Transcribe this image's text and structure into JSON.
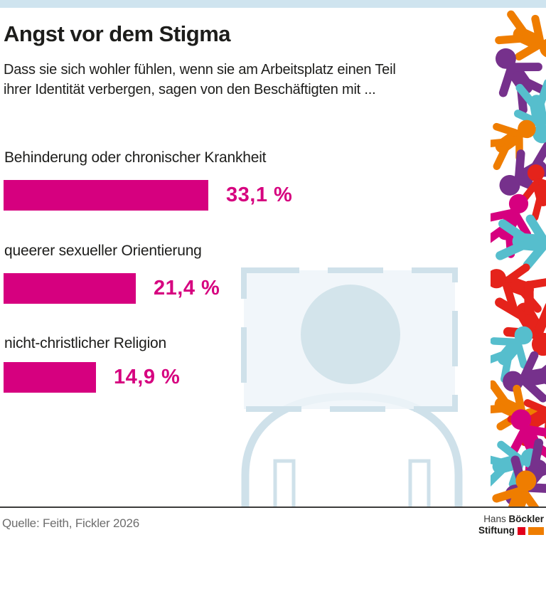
{
  "page": {
    "background": "#ffffff",
    "top_strip_color": "#cfe4ef"
  },
  "header": {
    "title": "Angst vor dem Stigma",
    "subtitle_line1": "Dass sie sich wohler fühlen, wenn sie am Arbeitsplatz einen Teil",
    "subtitle_line2": "ihrer Identität verbergen, sagen von den Beschäftigten mit ..."
  },
  "chart_data": {
    "type": "bar",
    "orientation": "horizontal",
    "title": "Angst vor dem Stigma",
    "unit": "%",
    "categories": [
      "Behinderung oder chronischer Krankheit",
      "queerer sexueller Orientierung",
      "nicht-christlicher Religion"
    ],
    "values": [
      33.1,
      21.4,
      14.9
    ],
    "value_labels": [
      "33,1 %",
      "21,4 %",
      "14,9 %"
    ],
    "bar_color": "#d6007f",
    "xlim": [
      0,
      35
    ],
    "grid": false,
    "legend": false
  },
  "footer": {
    "source": "Quelle: Feith, Fickler 2026",
    "logo": {
      "name_regular": "Hans",
      "name_bold": "Böckler",
      "line2": "Stiftung",
      "red_square_color": "#e2001a",
      "orange_rect_color": "#ef7d00"
    }
  },
  "illustration": {
    "center_person_color": "#cfe1ea",
    "center_person_head_color": "#d3e4eb",
    "frame_fill_color": "#eef5f9",
    "decor_palette": [
      "#ef7d00",
      "#76318c",
      "#56becd",
      "#d6007f",
      "#e5231b"
    ]
  }
}
